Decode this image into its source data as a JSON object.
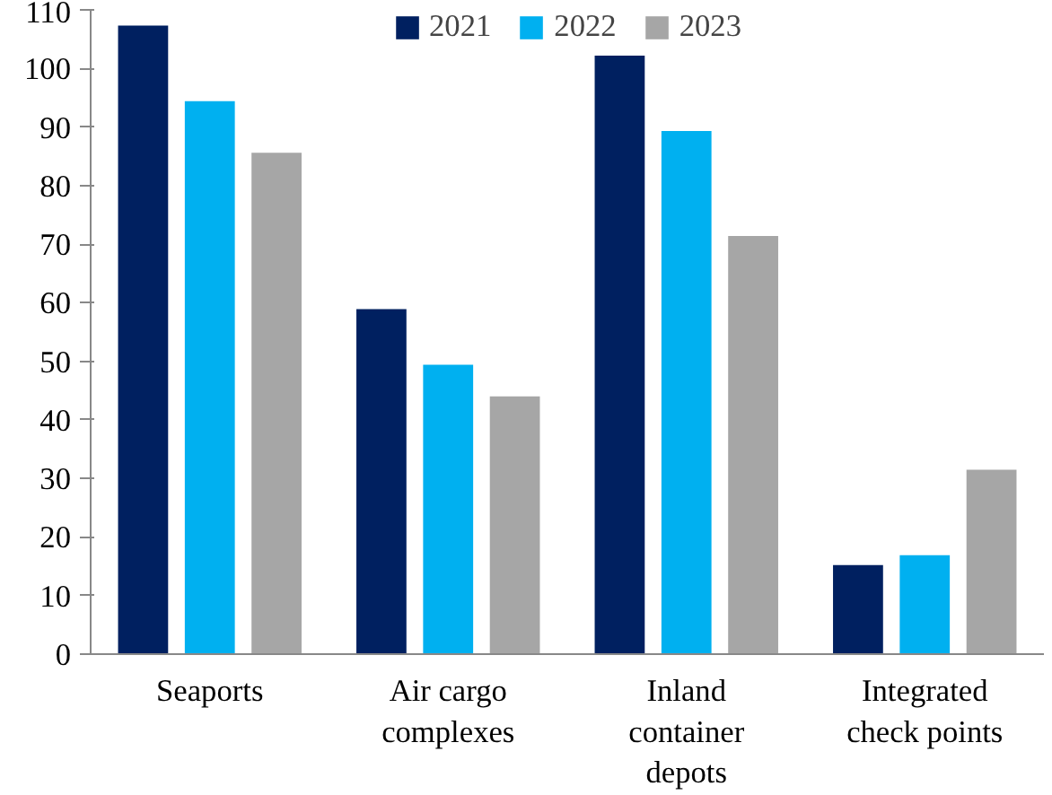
{
  "chart_data": {
    "type": "bar",
    "categories": [
      "Seaports",
      "Air cargo\ncomplexes",
      "Inland\ncontainer\ndepots",
      "Integrated\ncheck points"
    ],
    "series": [
      {
        "name": "2021",
        "color": "#002060",
        "values": [
          107.3,
          58.9,
          102.2,
          15.2
        ]
      },
      {
        "name": "2022",
        "color": "#00b0f0",
        "values": [
          94.4,
          49.4,
          89.3,
          16.9
        ]
      },
      {
        "name": "2023",
        "color": "#a6a6a6",
        "values": [
          85.6,
          44.0,
          71.4,
          31.5
        ]
      }
    ],
    "ylim": [
      0,
      110
    ],
    "yticks": [
      0,
      10,
      20,
      30,
      40,
      50,
      60,
      70,
      80,
      90,
      100,
      110
    ],
    "grid": false,
    "legend": "top"
  }
}
